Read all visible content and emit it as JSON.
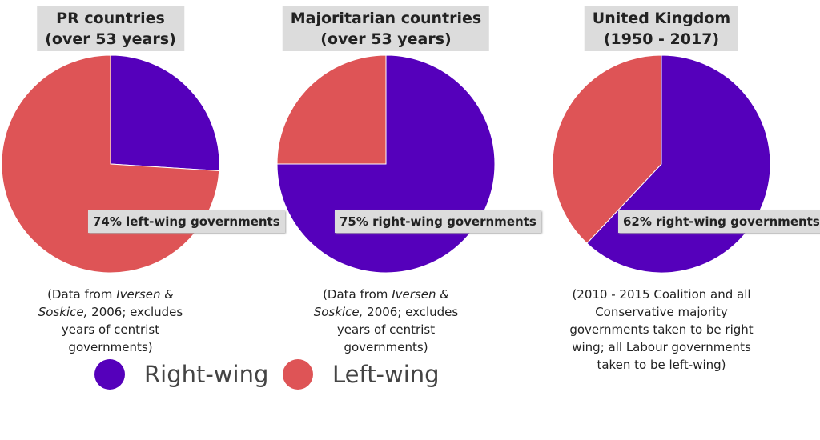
{
  "chart_data": [
    {
      "type": "pie",
      "title": "PR countries",
      "subtitle": "(over 53 years)",
      "categories": [
        "Right-wing",
        "Left-wing"
      ],
      "values": [
        26,
        74
      ],
      "colors": [
        "#5500bb",
        "#de5456"
      ],
      "annotation": "74% left-wing governments",
      "note": [
        "(Data from ",
        "Iversen & Soskice,",
        " 2006; excludes years of centrist governments)"
      ]
    },
    {
      "type": "pie",
      "title": "Majoritarian countries",
      "subtitle": "(over 53 years)",
      "categories": [
        "Right-wing",
        "Left-wing"
      ],
      "values": [
        75,
        25
      ],
      "colors": [
        "#5500bb",
        "#de5456"
      ],
      "annotation": "75% right-wing governments",
      "note": [
        "(Data from ",
        "Iversen & Soskice,",
        " 2006; excludes years of centrist governments)"
      ]
    },
    {
      "type": "pie",
      "title": "United Kingdom",
      "subtitle": "(1950 - 2017)",
      "categories": [
        "Right-wing",
        "Left-wing"
      ],
      "values": [
        62,
        38
      ],
      "colors": [
        "#5500bb",
        "#de5456"
      ],
      "annotation": "62% right-wing governments",
      "note": [
        "(2010 - 2015 Coalition and all Conservative majority governments taken to be right wing; all Labour governments taken to be left-wing)"
      ]
    }
  ]
}
